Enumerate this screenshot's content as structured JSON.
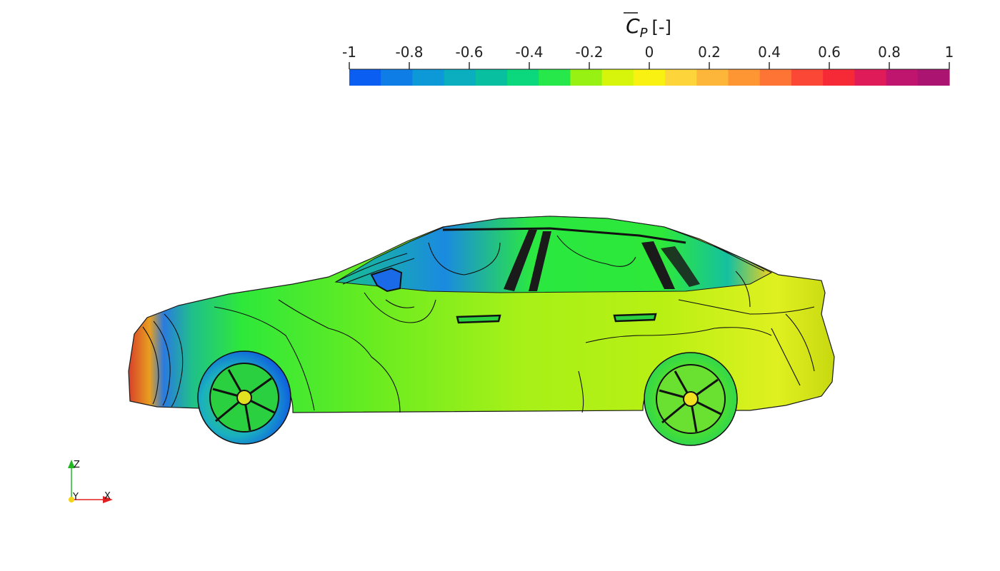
{
  "colorbar": {
    "title_symbol": "C",
    "title_subscript": "P",
    "title_units": "[-]",
    "tick_labels": [
      "-1",
      "-0.8",
      "-0.6",
      "-0.4",
      "-0.2",
      "0",
      "0.2",
      "0.4",
      "0.6",
      "0.8",
      "1"
    ],
    "range": [
      -1,
      1
    ],
    "colors": [
      "#0a5ff2",
      "#0e7ee6",
      "#0d98d8",
      "#0aaebf",
      "#08c0a0",
      "#0bd77c",
      "#27e84a",
      "#97f214",
      "#d6f50a",
      "#f9f112",
      "#fdd43a",
      "#fdb63a",
      "#fd9633",
      "#fd7434",
      "#fb4735",
      "#f62a36",
      "#e01b5a",
      "#c0156e",
      "#ab1470"
    ]
  },
  "orientation_axes": {
    "x_label": "X",
    "y_label": "Y",
    "z_label": "Z",
    "x_color": "#e02020",
    "y_color": "#f2d41a",
    "z_color": "#22b822"
  },
  "scene": {
    "object": "car-side-view",
    "dominant_color": "#8df020"
  }
}
